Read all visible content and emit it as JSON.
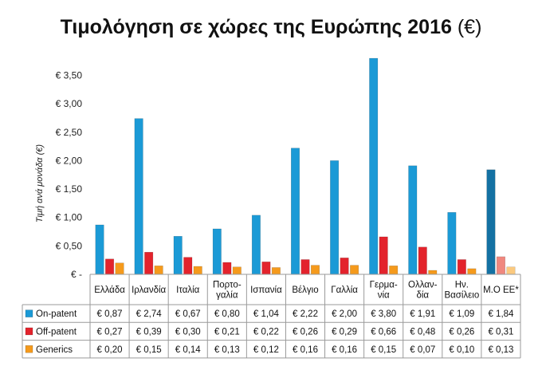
{
  "chart_data": {
    "type": "bar",
    "title": "Τιμολόγηση σε χώρες της Ευρώπης 2016",
    "title_unit": "(€)",
    "ylabel": "Τιμή ανά μονάδα (€)",
    "xlabel": "",
    "ylim": [
      0,
      3.8
    ],
    "yticks": [
      0,
      0.5,
      1.0,
      1.5,
      2.0,
      2.5,
      3.0,
      3.5
    ],
    "ytick_labels": [
      "€ -",
      "€ 0,50",
      "€ 1,00",
      "€ 1,50",
      "€ 2,00",
      "€ 2,50",
      "€ 3,00",
      "€ 3,50"
    ],
    "categories": [
      [
        "Ελλάδα"
      ],
      [
        "Ιρλανδία"
      ],
      [
        "Ιταλία"
      ],
      [
        "Πορτο-",
        "γαλία"
      ],
      [
        "Ισπανία"
      ],
      [
        "Βέλγιο"
      ],
      [
        "Γαλλία"
      ],
      [
        "Γερμα-",
        "νία"
      ],
      [
        "Ολλαν-",
        "δία"
      ],
      [
        "Ην.",
        "Βασίλειο"
      ],
      [
        "Μ.Ο ΕΕ*"
      ]
    ],
    "series": [
      {
        "name": "On-patent",
        "color": "#1b9ad6",
        "highlight_color": "#1471a3",
        "values": [
          0.87,
          2.74,
          0.67,
          0.8,
          1.04,
          2.22,
          2.0,
          3.8,
          1.91,
          1.09,
          1.84
        ],
        "labels": [
          "€ 0,87",
          "€ 2,74",
          "€ 0,67",
          "€ 0,80",
          "€ 1,04",
          "€ 2,22",
          "€ 2,00",
          "€ 3,80",
          "€ 1,91",
          "€ 1,09",
          "€ 1,84"
        ]
      },
      {
        "name": "Off-patent",
        "color": "#e3232c",
        "highlight_color": "#f0877e",
        "values": [
          0.27,
          0.39,
          0.3,
          0.21,
          0.22,
          0.26,
          0.29,
          0.66,
          0.48,
          0.26,
          0.31
        ],
        "labels": [
          "€ 0,27",
          "€ 0,39",
          "€ 0,30",
          "€ 0,21",
          "€ 0,22",
          "€ 0,26",
          "€ 0,29",
          "€ 0,66",
          "€ 0,48",
          "€ 0,26",
          "€ 0,31"
        ]
      },
      {
        "name": "Generics",
        "color": "#f59a1c",
        "highlight_color": "#fbc97e",
        "values": [
          0.2,
          0.15,
          0.14,
          0.13,
          0.12,
          0.16,
          0.16,
          0.15,
          0.07,
          0.1,
          0.13
        ],
        "labels": [
          "€ 0,20",
          "€ 0,15",
          "€ 0,14",
          "€ 0,13",
          "€ 0,12",
          "€ 0,16",
          "€ 0,16",
          "€ 0,15",
          "€ 0,07",
          "€ 0,10",
          "€ 0,13"
        ]
      }
    ],
    "highlight_category_index": 10,
    "grid": false,
    "legend": "table-left"
  }
}
